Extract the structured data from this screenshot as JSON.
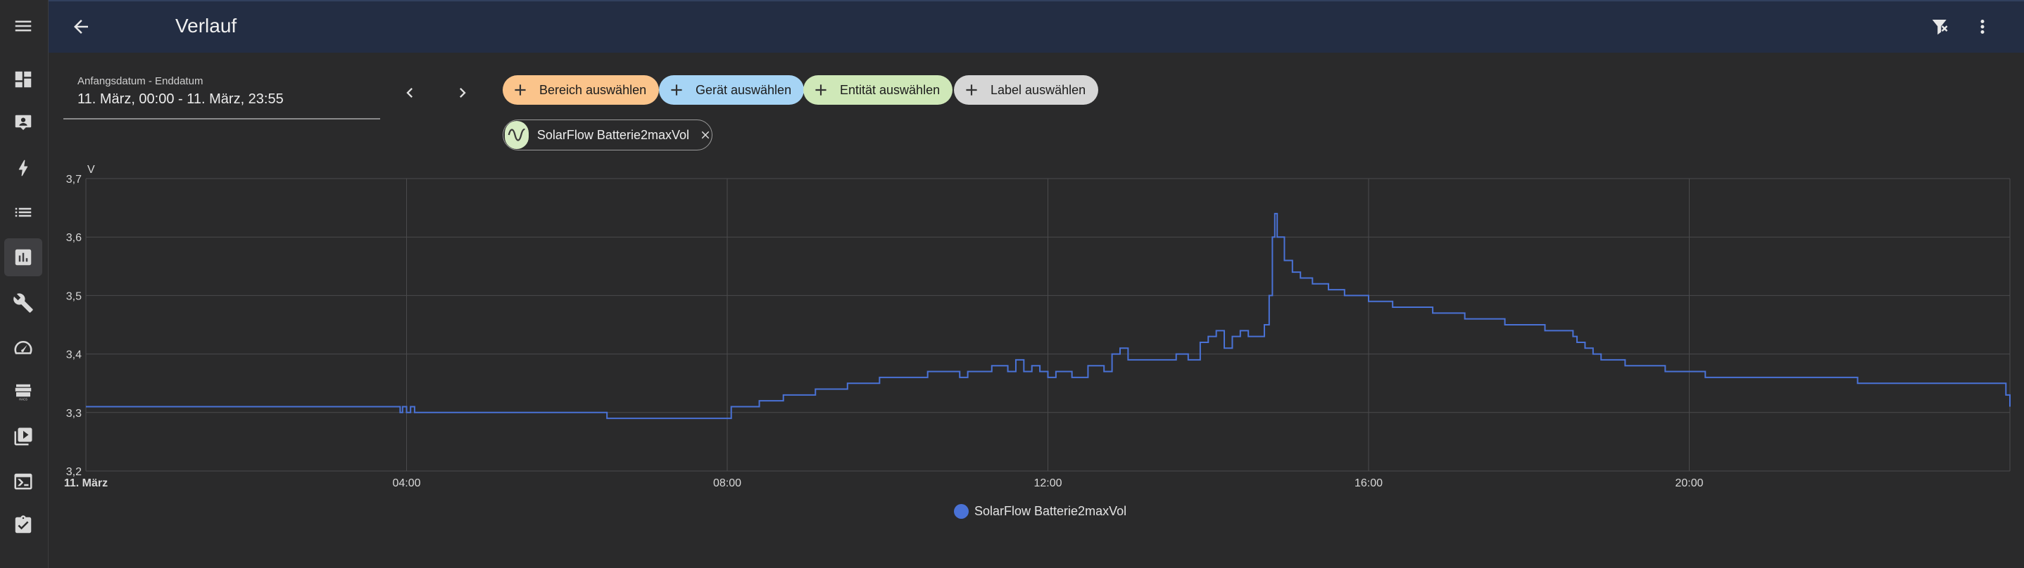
{
  "header": {
    "title": "Verlauf"
  },
  "sidebar": {
    "items": [
      {
        "icon": "menu-icon"
      },
      {
        "icon": "dashboard-icon"
      },
      {
        "icon": "map-icon"
      },
      {
        "icon": "energy-icon"
      },
      {
        "icon": "logbook-icon"
      },
      {
        "icon": "history-icon"
      },
      {
        "icon": "wrench-icon"
      },
      {
        "icon": "gauge-icon"
      },
      {
        "icon": "hacs-icon",
        "label": "HACS"
      },
      {
        "icon": "media-icon"
      },
      {
        "icon": "terminal-icon"
      },
      {
        "icon": "clipboard-icon"
      }
    ]
  },
  "date_picker": {
    "label": "Anfangsdatum - Enddatum",
    "value": "11. März, 00:00 - 11. März, 23:55"
  },
  "filters": {
    "area": "Bereich auswählen",
    "device": "Gerät auswählen",
    "entity": "Entität auswählen",
    "label": "Label auswählen"
  },
  "colors": {
    "area_chip": "#fbc48b",
    "device_chip": "#a6d4f5",
    "entity_chip": "#cfe8b8",
    "label_chip": "#d6d6d6",
    "series": "#4a72d6",
    "header": "#232d43"
  },
  "selected_entity": {
    "name": "SolarFlow Batterie2maxVol",
    "icon": "sine-wave-icon"
  },
  "chart_data": {
    "type": "line",
    "ylabel": "V",
    "ylim": [
      3.2,
      3.7
    ],
    "y_ticks": [
      "3,2",
      "3,3",
      "3,4",
      "3,5",
      "3,6",
      "3,7"
    ],
    "xlim": [
      0,
      24
    ],
    "x_ticks": [
      "11. März",
      "04:00",
      "08:00",
      "12:00",
      "16:00",
      "20:00"
    ],
    "x_tick_hours": [
      0,
      4,
      8,
      12,
      16,
      20
    ],
    "grid": true,
    "legend": "bottom",
    "series": [
      {
        "name": "SolarFlow Batterie2maxVol",
        "step": true,
        "points": [
          [
            0.0,
            3.31
          ],
          [
            3.9,
            3.31
          ],
          [
            3.92,
            3.3
          ],
          [
            3.95,
            3.31
          ],
          [
            4.0,
            3.3
          ],
          [
            4.05,
            3.31
          ],
          [
            4.1,
            3.3
          ],
          [
            6.5,
            3.3
          ],
          [
            6.5,
            3.29
          ],
          [
            8.0,
            3.29
          ],
          [
            8.05,
            3.31
          ],
          [
            8.4,
            3.32
          ],
          [
            8.7,
            3.33
          ],
          [
            9.1,
            3.34
          ],
          [
            9.5,
            3.35
          ],
          [
            9.9,
            3.36
          ],
          [
            10.5,
            3.37
          ],
          [
            10.9,
            3.36
          ],
          [
            11.0,
            3.37
          ],
          [
            11.3,
            3.38
          ],
          [
            11.5,
            3.37
          ],
          [
            11.6,
            3.39
          ],
          [
            11.7,
            3.37
          ],
          [
            11.8,
            3.38
          ],
          [
            11.9,
            3.37
          ],
          [
            12.0,
            3.36
          ],
          [
            12.1,
            3.37
          ],
          [
            12.2,
            3.37
          ],
          [
            12.3,
            3.36
          ],
          [
            12.5,
            3.38
          ],
          [
            12.7,
            3.37
          ],
          [
            12.8,
            3.4
          ],
          [
            12.9,
            3.41
          ],
          [
            13.0,
            3.39
          ],
          [
            13.4,
            3.39
          ],
          [
            13.6,
            3.4
          ],
          [
            13.75,
            3.39
          ],
          [
            13.9,
            3.42
          ],
          [
            14.0,
            3.43
          ],
          [
            14.1,
            3.44
          ],
          [
            14.2,
            3.41
          ],
          [
            14.3,
            3.43
          ],
          [
            14.4,
            3.44
          ],
          [
            14.5,
            3.43
          ],
          [
            14.6,
            3.43
          ],
          [
            14.7,
            3.45
          ],
          [
            14.76,
            3.5
          ],
          [
            14.8,
            3.6
          ],
          [
            14.83,
            3.64
          ],
          [
            14.86,
            3.6
          ],
          [
            14.95,
            3.56
          ],
          [
            15.05,
            3.54
          ],
          [
            15.15,
            3.53
          ],
          [
            15.3,
            3.52
          ],
          [
            15.5,
            3.51
          ],
          [
            15.7,
            3.5
          ],
          [
            16.0,
            3.49
          ],
          [
            16.3,
            3.48
          ],
          [
            16.8,
            3.47
          ],
          [
            17.2,
            3.46
          ],
          [
            17.7,
            3.45
          ],
          [
            18.2,
            3.44
          ],
          [
            18.5,
            3.44
          ],
          [
            18.55,
            3.43
          ],
          [
            18.6,
            3.42
          ],
          [
            18.7,
            3.41
          ],
          [
            18.8,
            3.4
          ],
          [
            18.9,
            3.39
          ],
          [
            19.2,
            3.38
          ],
          [
            19.7,
            3.37
          ],
          [
            20.0,
            3.37
          ],
          [
            20.2,
            3.36
          ],
          [
            22.0,
            3.36
          ],
          [
            22.1,
            3.35
          ],
          [
            23.0,
            3.35
          ],
          [
            23.9,
            3.35
          ],
          [
            23.95,
            3.33
          ],
          [
            24.0,
            3.31
          ]
        ]
      }
    ]
  }
}
